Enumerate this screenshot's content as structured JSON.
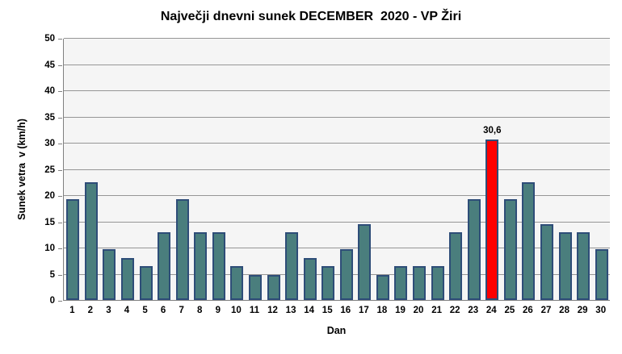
{
  "chart": {
    "title": "Največji dnevni sunek DECEMBER  2020 - VP Žiri",
    "y_axis_title": "Sunek vetra  v (km/h)",
    "x_axis_title": "Dan"
  },
  "chart_data": {
    "type": "bar",
    "title": "Največji dnevni sunek DECEMBER  2020 - VP Žiri",
    "xlabel": "Dan",
    "ylabel": "Sunek vetra v (km/h)",
    "ylim": [
      0,
      50
    ],
    "ytick_step": 5,
    "yticks": [
      0,
      5,
      10,
      15,
      20,
      25,
      30,
      35,
      40,
      45,
      50
    ],
    "grid": true,
    "legend": "none",
    "categories": [
      "1",
      "2",
      "3",
      "4",
      "5",
      "6",
      "7",
      "8",
      "9",
      "10",
      "11",
      "12",
      "13",
      "14",
      "15",
      "16",
      "17",
      "18",
      "19",
      "20",
      "21",
      "22",
      "23",
      "24",
      "25",
      "26",
      "27",
      "28",
      "29",
      "30"
    ],
    "values": [
      19.3,
      22.5,
      9.7,
      8.0,
      6.4,
      12.9,
      19.3,
      12.9,
      12.9,
      6.4,
      4.8,
      4.8,
      12.9,
      8.0,
      6.4,
      9.7,
      14.5,
      4.8,
      6.4,
      6.4,
      6.4,
      12.9,
      19.3,
      30.6,
      19.3,
      22.5,
      14.5,
      12.9,
      12.9,
      9.7
    ],
    "highlight": {
      "category": "24",
      "value": 30.6,
      "data_label": "30,6",
      "color": "#FF0000"
    },
    "colors": {
      "bar_fill": "#4A7E7D",
      "bar_border": "#2E4D78",
      "highlight_fill": "#FF0000",
      "gridline": "#969696",
      "axis_line": "#808080",
      "plot_background": "#F5F5F5",
      "chart_background": "#FFFFFF",
      "text": "#000000"
    }
  }
}
